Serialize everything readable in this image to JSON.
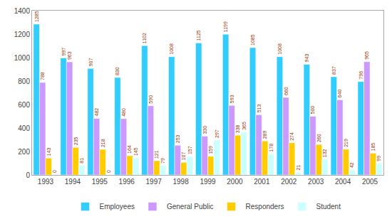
{
  "chart_data": {
    "type": "bar",
    "categories": [
      "1993",
      "1994",
      "1995",
      "1996",
      "1997",
      "1998",
      "1999",
      "2000",
      "2001",
      "2002",
      "2003",
      "2004",
      "2005"
    ],
    "series": [
      {
        "name": "Employees",
        "color": "#33CCFF",
        "values": [
          1285,
          997,
          907,
          830,
          1102,
          1008,
          1125,
          1199,
          1085,
          1008,
          943,
          837,
          796
        ]
      },
      {
        "name": "General Public",
        "color": "#CC99FF",
        "values": [
          788,
          963,
          482,
          480,
          590,
          253,
          330,
          593,
          513,
          660,
          500,
          640,
          965
        ]
      },
      {
        "name": "Responders",
        "color": "#FFCC00",
        "values": [
          143,
          235,
          218,
          164,
          121,
          107,
          159,
          338,
          289,
          274,
          260,
          219,
          185
        ]
      },
      {
        "name": "Student",
        "color": "#CCFFFF",
        "values": [
          0,
          81,
          0,
          145,
          79,
          157,
          297,
          365,
          178,
          21,
          132,
          42,
          99
        ]
      }
    ],
    "ylim": [
      0,
      1400
    ],
    "yticks": [
      0,
      200,
      400,
      600,
      800,
      1000,
      1200,
      1400
    ],
    "grid": false,
    "legend": "bottom",
    "data_labels": true
  }
}
